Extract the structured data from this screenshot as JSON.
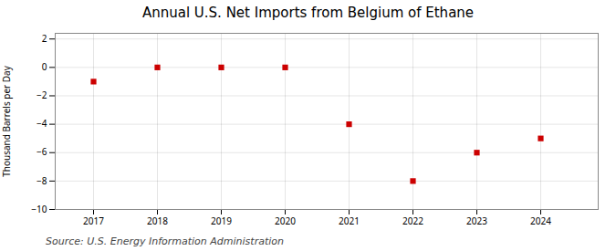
{
  "chart_data": {
    "type": "scatter",
    "title": "Annual U.S. Net Imports from Belgium of Ethane",
    "ylabel": "Thousand Barrels per Day",
    "source": "Source: U.S. Energy Information Administration",
    "x": [
      2017,
      2018,
      2019,
      2020,
      2021,
      2022,
      2023,
      2024
    ],
    "values": [
      -1,
      0,
      0,
      0,
      -4,
      -8,
      -6,
      -5
    ],
    "xlim": [
      2016.4,
      2024.9
    ],
    "xticks": [
      2017,
      2018,
      2019,
      2020,
      2021,
      2022,
      2023,
      2024
    ],
    "ylim": [
      -10,
      2.4
    ],
    "yticks": [
      -10,
      -8,
      -6,
      -4,
      -2,
      0,
      2
    ],
    "color": "#cc0000",
    "marker": "square",
    "grid": true
  }
}
